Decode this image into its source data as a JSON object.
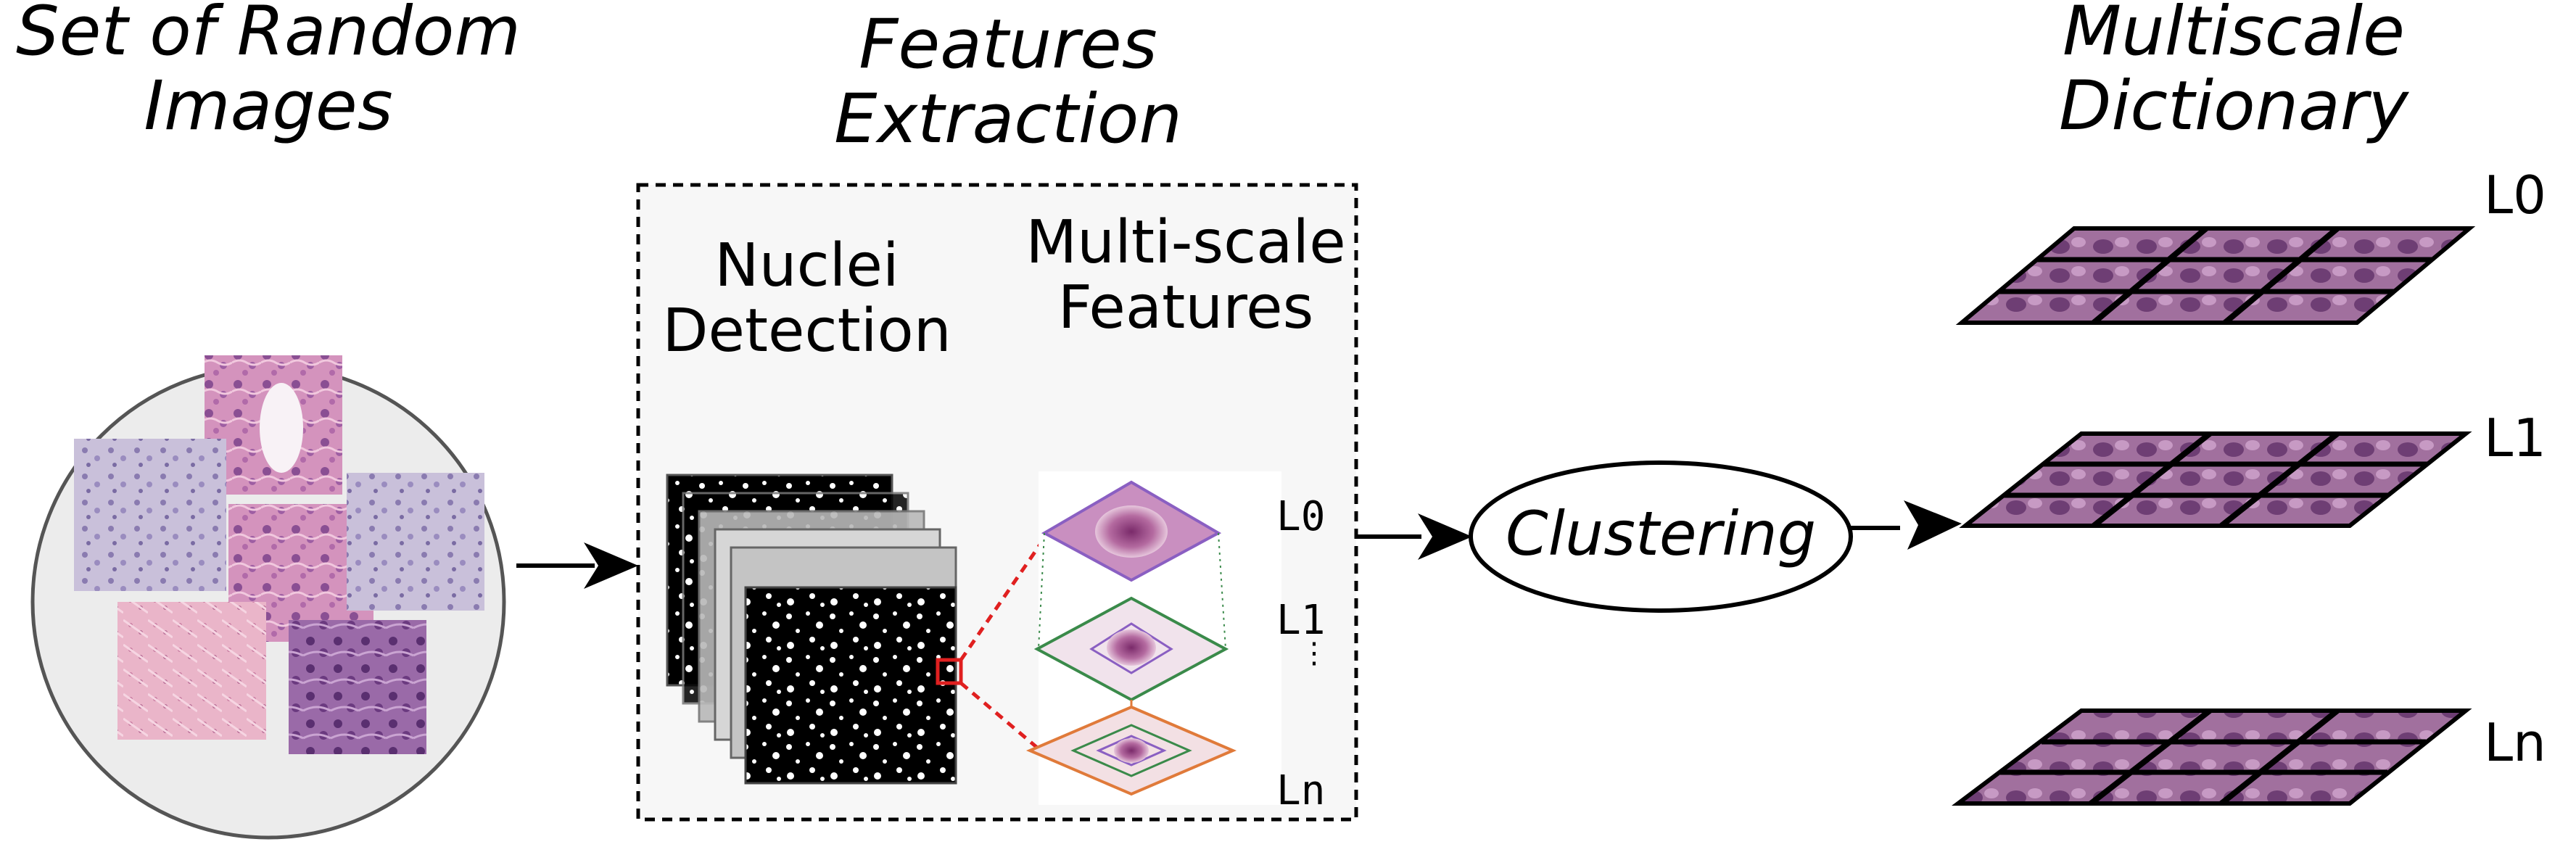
{
  "stages": {
    "input": {
      "title_line1": "Set of Random",
      "title_line2": "Images"
    },
    "extraction": {
      "title_line1": "Features",
      "title_line2": "Extraction"
    },
    "dictionary": {
      "title_line1": "Multiscale",
      "title_line2": "Dictionary"
    }
  },
  "extraction_box": {
    "nuclei": {
      "line1": "Nuclei",
      "line2": "Detection"
    },
    "multiscale": {
      "line1": "Multi-scale",
      "line2": "Features"
    },
    "levels": [
      "L0",
      "L1",
      "Ln"
    ]
  },
  "clustering": {
    "label": "Clustering"
  },
  "dictionary_levels": [
    "L0",
    "L1",
    "Ln"
  ],
  "colors": {
    "tissue_pink": "#c77fb0",
    "tissue_purple": "#7a4a8a",
    "mask_black": "#000000",
    "highlight_red": "#e02020",
    "level_green": "#3a8a4a",
    "level_orange": "#e07a3a",
    "circle_fill": "#ececec"
  }
}
